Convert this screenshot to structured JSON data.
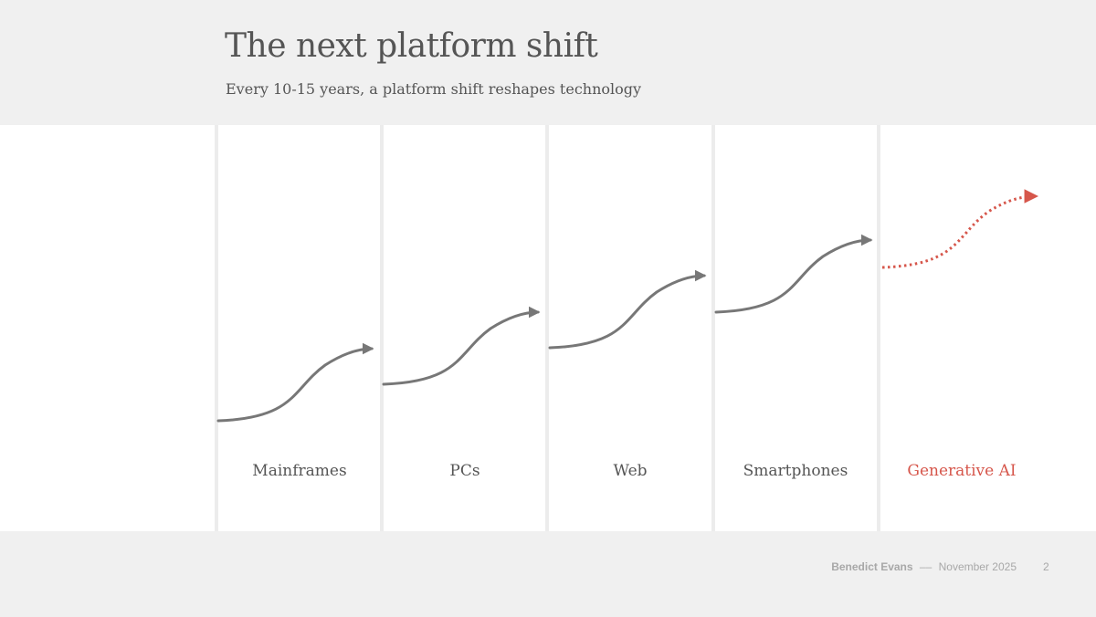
{
  "slide": {
    "title": "The next platform shift",
    "subtitle": "Every 10-15 years, a platform shift reshapes technology"
  },
  "diagram": {
    "eras": [
      {
        "label": "Mainframes",
        "highlight": false
      },
      {
        "label": "PCs",
        "highlight": false
      },
      {
        "label": "Web",
        "highlight": false
      },
      {
        "label": "Smartphones",
        "highlight": false
      },
      {
        "label": "Generative AI",
        "highlight": true
      }
    ],
    "colors": {
      "arrow": "#777777",
      "highlight": "#d6564b"
    }
  },
  "footer": {
    "author": "Benedict Evans",
    "separator": "––",
    "date": "November 2025",
    "page": "2"
  }
}
